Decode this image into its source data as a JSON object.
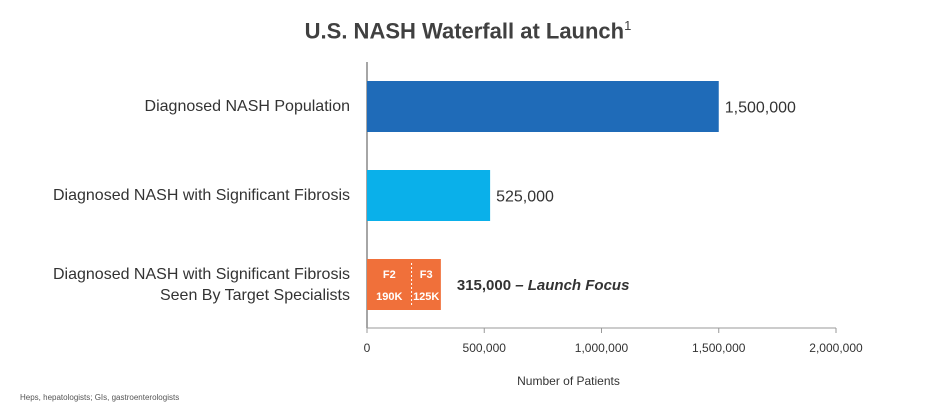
{
  "chart_data": {
    "type": "bar",
    "orientation": "horizontal",
    "title": "U.S. NASH Waterfall at Launch",
    "title_superscript": "1",
    "xlabel": "Number of Patients",
    "xlim": [
      0,
      2000000
    ],
    "xticks": [
      "0",
      "500,000",
      "1,000,000",
      "1,500,000",
      "2,000,000"
    ],
    "grid": false,
    "categories": [
      "Diagnosed NASH Population",
      "Diagnosed NASH with Significant Fibrosis",
      "Diagnosed NASH with Significant Fibrosis Seen By Target Specialists"
    ],
    "category_lines": [
      [
        "Diagnosed NASH Population"
      ],
      [
        "Diagnosed NASH with Significant Fibrosis"
      ],
      [
        "Diagnosed NASH with Significant Fibrosis",
        "Seen By Target Specialists"
      ]
    ],
    "values": [
      1500000,
      525000,
      315000
    ],
    "value_labels": [
      "1,500,000",
      "525,000",
      "315,000"
    ],
    "value_label_suffix": "– Launch Focus",
    "colors": [
      "#1f6bb8",
      "#0ab0ea",
      "#f0703a"
    ],
    "stacked_last": [
      {
        "name": "F2",
        "value": 190000,
        "label": "190K"
      },
      {
        "name": "F3",
        "value": 125000,
        "label": "125K"
      }
    ]
  },
  "footnote": "Heps, hepatologists; GIs, gastroenterologists"
}
